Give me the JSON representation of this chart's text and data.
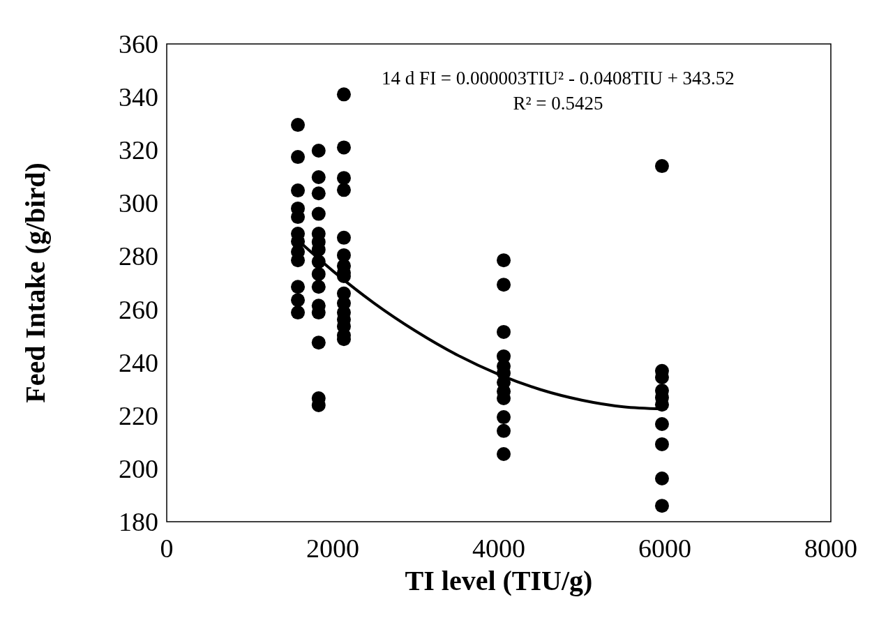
{
  "chart_data": {
    "type": "scatter",
    "xlabel": "TI level (TIU/g)",
    "ylabel": "Feed Intake (g/bird)",
    "xlim": [
      0,
      8000
    ],
    "xticks": [
      0,
      2000,
      4000,
      6000,
      8000
    ],
    "ylim": [
      180,
      360
    ],
    "yticks": [
      180,
      200,
      220,
      240,
      260,
      280,
      300,
      320,
      340,
      360
    ],
    "grid": false,
    "marker": "circle",
    "annotations": [
      "14 d FI = 0.000003TIU² - 0.0408TIU + 343.52",
      "R² = 0.5425"
    ],
    "series": [
      {
        "color": "#000000",
        "x": [
          1580,
          1580,
          1580,
          1580,
          1580,
          1580,
          1580,
          1580,
          1580,
          1580,
          1580,
          1580,
          1830,
          1830,
          1830,
          1830,
          1830,
          1830,
          1830,
          1830,
          1830,
          1830,
          1830,
          1830,
          1830,
          1830,
          1830,
          2134,
          2134,
          2134,
          2134,
          2134,
          2134,
          2134,
          2134,
          2134,
          2134,
          2134,
          2134,
          2134,
          2134,
          2134,
          2134,
          4059,
          4059,
          4059,
          4059,
          4059,
          4059,
          4059,
          4059,
          4059,
          4059,
          4059,
          4059,
          5966,
          5966,
          5966,
          5966,
          5966,
          5966,
          5966,
          5966,
          5966,
          5966
        ],
        "values": [
          329.5,
          317.4,
          304.8,
          298,
          294.8,
          288.5,
          285.6,
          281.7,
          278.5,
          268.5,
          263.5,
          258.8,
          319.8,
          309.8,
          303.7,
          296,
          288.5,
          285.4,
          282.5,
          278,
          273.3,
          268.5,
          261.4,
          258.8,
          247.5,
          226.5,
          223.9,
          341,
          321,
          309.5,
          305,
          287,
          280.4,
          276.4,
          273.8,
          272.5,
          266,
          262.3,
          258.8,
          256.2,
          253.6,
          250.2,
          248.8,
          278.5,
          269.3,
          251.5,
          242.3,
          238.6,
          236,
          232.5,
          229.1,
          226.5,
          219.4,
          214.2,
          205.5,
          314,
          236.8,
          234.4,
          229.4,
          226.8,
          224.1,
          216.8,
          209.2,
          196.3,
          186
        ]
      },
      {
        "type": "line",
        "color": "#000000",
        "marker": "none",
        "x": [
          1580,
          2000,
          2500,
          3000,
          3500,
          4000,
          4500,
          5000,
          5500,
          5966
        ],
        "values": [
          286,
          274.5,
          262.3,
          251.8,
          242.8,
          235.5,
          229.8,
          225.8,
          223.3,
          222.5
        ]
      }
    ]
  }
}
